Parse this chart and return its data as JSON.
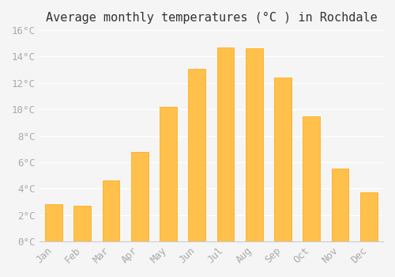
{
  "months": [
    "Jan",
    "Feb",
    "Mar",
    "Apr",
    "May",
    "Jun",
    "Jul",
    "Aug",
    "Sep",
    "Oct",
    "Nov",
    "Dec"
  ],
  "temperatures": [
    2.8,
    2.7,
    4.6,
    6.8,
    10.2,
    13.1,
    14.7,
    14.6,
    12.4,
    9.5,
    5.5,
    3.7
  ],
  "bar_color": "#FFC04C",
  "bar_edge_color": "#FFA500",
  "title": "Average monthly temperatures (°C ) in Rochdale",
  "ylim": [
    0,
    16
  ],
  "ytick_values": [
    0,
    2,
    4,
    6,
    8,
    10,
    12,
    14,
    16
  ],
  "ytick_labels": [
    "0°C",
    "2°C",
    "4°C",
    "6°C",
    "8°C",
    "10°C",
    "12°C",
    "14°C",
    "16°C"
  ],
  "background_color": "#f5f5f5",
  "grid_color": "#ffffff",
  "title_fontsize": 11,
  "tick_fontsize": 9,
  "tick_color": "#aaaaaa"
}
